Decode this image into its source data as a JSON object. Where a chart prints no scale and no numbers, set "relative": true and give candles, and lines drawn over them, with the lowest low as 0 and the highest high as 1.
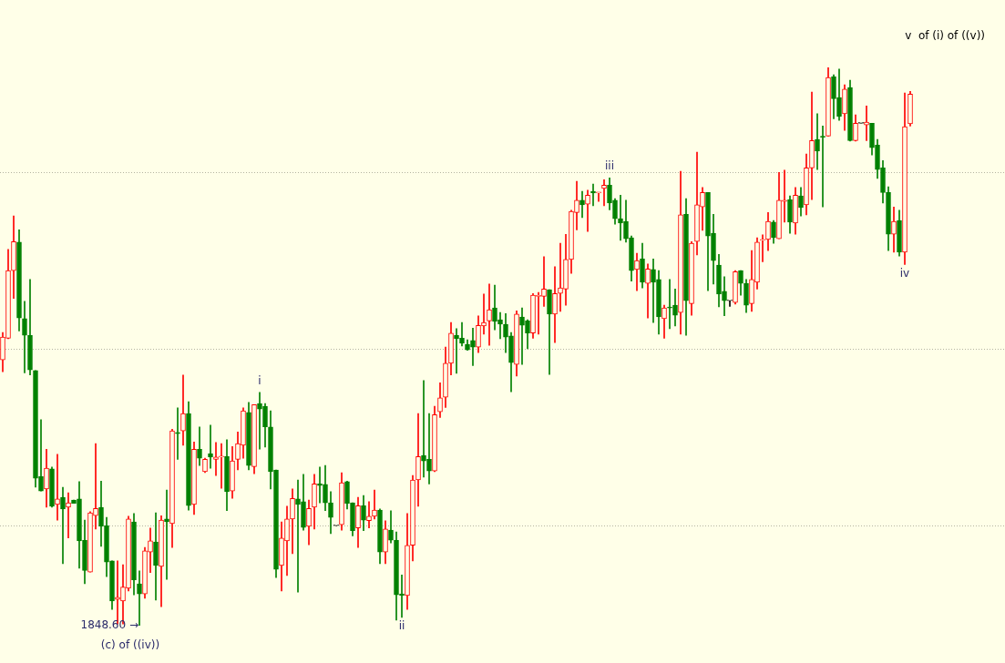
{
  "chart_data": {
    "type": "candlestick",
    "relative": true,
    "tick_labels": false,
    "categories": [
      null,
      null,
      null,
      null,
      null,
      null,
      null,
      null,
      null,
      null,
      null,
      null,
      null,
      null,
      null,
      null,
      null,
      null,
      null,
      null,
      null,
      null,
      null,
      null,
      null,
      null,
      null,
      null,
      null,
      null,
      null,
      null,
      null,
      null,
      null,
      null,
      null,
      null,
      null,
      null,
      null,
      null,
      null,
      null,
      null,
      null,
      null,
      null,
      null,
      null,
      null,
      null,
      null,
      null,
      null,
      null,
      null,
      null,
      null,
      null,
      null,
      null,
      null,
      null,
      null,
      null,
      null,
      null,
      null,
      null,
      null,
      null,
      null,
      null,
      null,
      null,
      null,
      null,
      null,
      null,
      null,
      null,
      null,
      null,
      null,
      null,
      null,
      null,
      null,
      null,
      null,
      null,
      null,
      null,
      null,
      null,
      null,
      null,
      null,
      null,
      null,
      null,
      null,
      null,
      null,
      null,
      null,
      null,
      null,
      null,
      null,
      null,
      null,
      null,
      null,
      null,
      null,
      null,
      null,
      null,
      null,
      null,
      null,
      null,
      null,
      null,
      null,
      null,
      null,
      null,
      null,
      null,
      null,
      null,
      null,
      null,
      null,
      null,
      null,
      null,
      null,
      null,
      null,
      null,
      null,
      null,
      null,
      null,
      null,
      null,
      null,
      null,
      null,
      null,
      null,
      null,
      null,
      null,
      null,
      null,
      null,
      null,
      null,
      null,
      null,
      null,
      null
    ],
    "ohlc": [
      [
        0.476,
        0.525,
        0.455,
        0.517
      ],
      [
        0.515,
        0.674,
        0.514,
        0.636
      ],
      [
        0.636,
        0.734,
        0.586,
        0.688
      ],
      [
        0.687,
        0.709,
        0.528,
        0.551
      ],
      [
        0.55,
        0.581,
        0.453,
        0.52
      ],
      [
        0.52,
        0.62,
        0.449,
        0.458
      ],
      [
        0.457,
        0.457,
        0.248,
        0.264
      ],
      [
        0.267,
        0.369,
        0.241,
        0.241
      ],
      [
        0.245,
        0.316,
        0.212,
        0.282
      ],
      [
        0.281,
        0.284,
        0.212,
        0.214
      ],
      [
        0.217,
        0.307,
        0.189,
        0.227
      ],
      [
        0.23,
        0.248,
        0.111,
        0.209
      ],
      [
        0.212,
        0.238,
        0.157,
        0.22
      ],
      [
        0.225,
        0.225,
        0.219,
        0.219
      ],
      [
        0.227,
        0.258,
        0.103,
        0.152
      ],
      [
        0.153,
        0.189,
        0.075,
        0.099
      ],
      [
        0.096,
        0.204,
        0.096,
        0.202
      ],
      [
        0.197,
        0.326,
        0.173,
        0.21
      ],
      [
        0.212,
        0.259,
        0.142,
        0.178
      ],
      [
        0.179,
        0.194,
        0.088,
        0.114
      ],
      [
        0.116,
        0.116,
        0.029,
        0.044
      ],
      [
        0.047,
        0.116,
        0.003,
        0.051
      ],
      [
        0.044,
        0.109,
        0.003,
        0.069
      ],
      [
        0.067,
        0.196,
        0.062,
        0.191
      ],
      [
        0.186,
        0.201,
        0.055,
        0.082
      ],
      [
        0.075,
        0.098,
        0,
        0.057
      ],
      [
        0.057,
        0.14,
        0.049,
        0.134
      ],
      [
        0.132,
        0.175,
        0.095,
        0.152
      ],
      [
        0.15,
        0.202,
        0.046,
        0.108
      ],
      [
        0.106,
        0.197,
        0.034,
        0.189
      ],
      [
        0.191,
        0.243,
        0.083,
        0.186
      ],
      [
        0.183,
        0.352,
        0.14,
        0.349
      ],
      [
        0.346,
        0.39,
        0.298,
        0.344
      ],
      [
        0.349,
        0.449,
        0.323,
        0.38
      ],
      [
        0.38,
        0.401,
        0.207,
        0.215
      ],
      [
        0.217,
        0.329,
        0.199,
        0.316
      ],
      [
        0.316,
        0.356,
        0.287,
        0.3
      ],
      [
        0.276,
        0.3,
        0.274,
        0.298
      ],
      [
        0.308,
        0.359,
        0.282,
        0.302
      ],
      [
        0.298,
        0.328,
        0.269,
        0.302
      ],
      [
        0.302,
        0.326,
        0.246,
        0.303
      ],
      [
        0.303,
        0.333,
        0.206,
        0.24
      ],
      [
        0.241,
        0.321,
        0.228,
        0.295
      ],
      [
        0.298,
        0.347,
        0.279,
        0.326
      ],
      [
        0.323,
        0.39,
        0.3,
        0.385
      ],
      [
        0.382,
        0.4,
        0.279,
        0.287
      ],
      [
        0.285,
        0.396,
        0.272,
        0.396
      ],
      [
        0.398,
        0.418,
        0.316,
        0.388
      ],
      [
        0.393,
        0.398,
        0.32,
        0.356
      ],
      [
        0.356,
        0.385,
        0.245,
        0.276
      ],
      [
        0.279,
        0.279,
        0.086,
        0.101
      ],
      [
        0.108,
        0.186,
        0.062,
        0.157
      ],
      [
        0.152,
        0.214,
        0.09,
        0.191
      ],
      [
        0.191,
        0.245,
        0.129,
        0.228
      ],
      [
        0.227,
        0.261,
        0.06,
        0.217
      ],
      [
        0.222,
        0.271,
        0.171,
        0.176
      ],
      [
        0.178,
        0.225,
        0.145,
        0.21
      ],
      [
        0.212,
        0.271,
        0.173,
        0.254
      ],
      [
        0.254,
        0.284,
        0.22,
        0.251
      ],
      [
        0.253,
        0.287,
        0.206,
        0.22
      ],
      [
        0.22,
        0.24,
        0.165,
        0.194
      ],
      [
        0.179,
        0.179,
        0.179,
        0.179
      ],
      [
        0.181,
        0.274,
        0.171,
        0.256
      ],
      [
        0.258,
        0.259,
        0.209,
        0.219
      ],
      [
        0.22,
        0.22,
        0.161,
        0.17
      ],
      [
        0.175,
        0.23,
        0.14,
        0.215
      ],
      [
        0.215,
        0.233,
        0.17,
        0.189
      ],
      [
        0.188,
        0.222,
        0.175,
        0.196
      ],
      [
        0.196,
        0.243,
        0.191,
        0.207
      ],
      [
        0.207,
        0.209,
        0.111,
        0.132
      ],
      [
        0.132,
        0.188,
        0.111,
        0.173
      ],
      [
        0.171,
        0.206,
        0.148,
        0.153
      ],
      [
        0.153,
        0.168,
        0.01,
        0.055
      ],
      [
        0.057,
        0.091,
        0.015,
        0.054
      ],
      [
        0.054,
        0.201,
        0.029,
        0.144
      ],
      [
        0.144,
        0.269,
        0.116,
        0.261
      ],
      [
        0.261,
        0.38,
        0.214,
        0.303
      ],
      [
        0.305,
        0.439,
        0.266,
        0.295
      ],
      [
        0.298,
        0.38,
        0.254,
        0.277
      ],
      [
        0.277,
        0.393,
        0.276,
        0.378
      ],
      [
        0.383,
        0.435,
        0.373,
        0.408
      ],
      [
        0.409,
        0.499,
        0.391,
        0.47
      ],
      [
        0.47,
        0.543,
        0.449,
        0.524
      ],
      [
        0.52,
        0.532,
        0.452,
        0.514
      ],
      [
        0.515,
        0.543,
        0.501,
        0.506
      ],
      [
        0.504,
        0.512,
        0.493,
        0.494
      ],
      [
        0.511,
        0.533,
        0.466,
        0.499
      ],
      [
        0.499,
        0.555,
        0.489,
        0.538
      ],
      [
        0.537,
        0.594,
        0.522,
        0.543
      ],
      [
        0.546,
        0.612,
        0.502,
        0.566
      ],
      [
        0.569,
        0.61,
        0.53,
        0.545
      ],
      [
        0.548,
        0.561,
        0.514,
        0.54
      ],
      [
        0.54,
        0.559,
        0.489,
        0.517
      ],
      [
        0.519,
        0.525,
        0.419,
        0.471
      ],
      [
        0.468,
        0.564,
        0.447,
        0.558
      ],
      [
        0.553,
        0.569,
        0.468,
        0.538
      ],
      [
        0.546,
        0.548,
        0.496,
        0.524
      ],
      [
        0.524,
        0.595,
        0.515,
        0.592
      ],
      [
        0.59,
        0.597,
        0.522,
        0.59
      ],
      [
        0.59,
        0.661,
        0.572,
        0.603
      ],
      [
        0.602,
        0.602,
        0.45,
        0.558
      ],
      [
        0.558,
        0.643,
        0.507,
        0.595
      ],
      [
        0.595,
        0.685,
        0.563,
        0.605
      ],
      [
        0.603,
        0.701,
        0.574,
        0.656
      ],
      [
        0.656,
        0.744,
        0.631,
        0.742
      ],
      [
        0.74,
        0.796,
        0.709,
        0.762
      ],
      [
        0.762,
        0.778,
        0.731,
        0.754
      ],
      [
        0.755,
        0.78,
        0.706,
        0.771
      ],
      [
        0.778,
        0.791,
        0.752,
        0.775
      ],
      [
        0.775,
        0.776,
        0.76,
        0.776
      ],
      [
        0.783,
        0.799,
        0.752,
        0.789
      ],
      [
        0.789,
        0.802,
        0.745,
        0.757
      ],
      [
        0.762,
        0.765,
        0.719,
        0.729
      ],
      [
        0.729,
        0.771,
        0.69,
        0.721
      ],
      [
        0.724,
        0.762,
        0.687,
        0.693
      ],
      [
        0.695,
        0.698,
        0.617,
        0.636
      ],
      [
        0.638,
        0.667,
        0.6,
        0.654
      ],
      [
        0.657,
        0.685,
        0.605,
        0.615
      ],
      [
        0.613,
        0.648,
        0.551,
        0.639
      ],
      [
        0.638,
        0.657,
        0.543,
        0.615
      ],
      [
        0.62,
        0.636,
        0.522,
        0.553
      ],
      [
        0.55,
        0.574,
        0.515,
        0.569
      ],
      [
        0.571,
        0.62,
        0.532,
        0.569
      ],
      [
        0.574,
        0.603,
        0.537,
        0.556
      ],
      [
        0.561,
        0.814,
        0.522,
        0.736
      ],
      [
        0.737,
        0.765,
        0.52,
        0.582
      ],
      [
        0.577,
        0.688,
        0.556,
        0.685
      ],
      [
        0.688,
        0.848,
        0.664,
        0.754
      ],
      [
        0.75,
        0.785,
        0.708,
        0.776
      ],
      [
        0.776,
        0.776,
        0.6,
        0.698
      ],
      [
        0.703,
        0.737,
        0.612,
        0.654
      ],
      [
        0.646,
        0.665,
        0.571,
        0.594
      ],
      [
        0.599,
        0.625,
        0.555,
        0.582
      ],
      [
        0.582,
        0.582,
        0.572,
        0.582
      ],
      [
        0.579,
        0.636,
        0.576,
        0.634
      ],
      [
        0.636,
        0.636,
        0.592,
        0.613
      ],
      [
        0.613,
        0.62,
        0.561,
        0.574
      ],
      [
        0.577,
        0.672,
        0.563,
        0.62
      ],
      [
        0.615,
        0.695,
        0.603,
        0.687
      ],
      [
        0.69,
        0.7,
        0.652,
        0.692
      ],
      [
        0.692,
        0.74,
        0.672,
        0.724
      ],
      [
        0.723,
        0.726,
        0.685,
        0.695
      ],
      [
        0.693,
        0.812,
        0.693,
        0.762
      ],
      [
        0.76,
        0.816,
        0.723,
        0.762
      ],
      [
        0.763,
        0.77,
        0.703,
        0.723
      ],
      [
        0.721,
        0.785,
        0.701,
        0.771
      ],
      [
        0.77,
        0.785,
        0.734,
        0.749
      ],
      [
        0.754,
        0.845,
        0.736,
        0.82
      ],
      [
        0.82,
        0.956,
        0.763,
        0.869
      ],
      [
        0.871,
        0.917,
        0.817,
        0.85
      ],
      [
        0.876,
        0.895,
        0.75,
        0.875
      ],
      [
        0.877,
        1,
        0.877,
        0.982
      ],
      [
        0.983,
        0.987,
        0.908,
        0.944
      ],
      [
        0.946,
        0.997,
        0.905,
        0.912
      ],
      [
        0.917,
        0.969,
        0.887,
        0.961
      ],
      [
        0.964,
        0.977,
        0.868,
        0.869
      ],
      [
        0.869,
        0.915,
        0.868,
        0.9
      ],
      [
        0.9,
        0.9,
        0.9,
        0.9
      ],
      [
        0.897,
        0.931,
        0.869,
        0.902
      ],
      [
        0.9,
        0.9,
        0.843,
        0.856
      ],
      [
        0.861,
        0.871,
        0.801,
        0.817
      ],
      [
        0.82,
        0.833,
        0.757,
        0.776
      ],
      [
        0.776,
        0.786,
        0.672,
        0.701
      ],
      [
        0.701,
        0.75,
        0.669,
        0.724
      ],
      [
        0.726,
        0.744,
        0.662,
        0.669
      ],
      [
        0.669,
        0.954,
        0.647,
        0.894
      ],
      [
        0.899,
        0.957,
        0.895,
        0.952
      ]
    ],
    "colors": [
      "#ff0000",
      "#ff0000",
      "#ff0000",
      "#008000",
      "#008000",
      "#008000",
      "#008000",
      "#008000",
      "#ff0000",
      "#008000",
      "#ff0000",
      "#008000",
      "#ff0000",
      "#008000",
      "#008000",
      "#008000",
      "#ff0000",
      "#ff0000",
      "#008000",
      "#008000",
      "#008000",
      "#ff0000",
      "#ff0000",
      "#ff0000",
      "#008000",
      "#008000",
      "#ff0000",
      "#ff0000",
      "#008000",
      "#ff0000",
      "#008000",
      "#ff0000",
      "#008000",
      "#ff0000",
      "#008000",
      "#ff0000",
      "#008000",
      "#ff0000",
      "#008000",
      "#ff0000",
      "#ff0000",
      "#008000",
      "#ff0000",
      "#ff0000",
      "#ff0000",
      "#008000",
      "#ff0000",
      "#008000",
      "#008000",
      "#008000",
      "#008000",
      "#ff0000",
      "#ff0000",
      "#ff0000",
      "#008000",
      "#008000",
      "#ff0000",
      "#ff0000",
      "#008000",
      "#008000",
      "#008000",
      "#000000",
      "#ff0000",
      "#008000",
      "#008000",
      "#ff0000",
      "#008000",
      "#ff0000",
      "#ff0000",
      "#008000",
      "#ff0000",
      "#008000",
      "#008000",
      "#008000",
      "#ff0000",
      "#ff0000",
      "#ff0000",
      "#008000",
      "#008000",
      "#ff0000",
      "#ff0000",
      "#ff0000",
      "#ff0000",
      "#008000",
      "#008000",
      "#008000",
      "#008000",
      "#ff0000",
      "#ff0000",
      "#ff0000",
      "#008000",
      "#008000",
      "#008000",
      "#008000",
      "#ff0000",
      "#008000",
      "#008000",
      "#ff0000",
      "#ff0000",
      "#ff0000",
      "#008000",
      "#ff0000",
      "#ff0000",
      "#ff0000",
      "#ff0000",
      "#ff0000",
      "#008000",
      "#ff0000",
      "#008000",
      "#ff0000",
      "#ff0000",
      "#008000",
      "#008000",
      "#008000",
      "#008000",
      "#008000",
      "#ff0000",
      "#008000",
      "#ff0000",
      "#008000",
      "#008000",
      "#ff0000",
      "#008000",
      "#008000",
      "#ff0000",
      "#008000",
      "#ff0000",
      "#ff0000",
      "#ff0000",
      "#008000",
      "#008000",
      "#008000",
      "#008000",
      "#000000",
      "#ff0000",
      "#008000",
      "#008000",
      "#ff0000",
      "#ff0000",
      "#ff0000",
      "#ff0000",
      "#008000",
      "#ff0000",
      "#ff0000",
      "#008000",
      "#ff0000",
      "#008000",
      "#ff0000",
      "#ff0000",
      "#008000",
      "#008000",
      "#ff0000",
      "#008000",
      "#008000",
      "#ff0000",
      "#008000",
      "#ff0000",
      "#000000",
      "#ff0000",
      "#008000",
      "#008000",
      "#008000",
      "#008000",
      "#ff0000",
      "#008000",
      "#ff0000",
      "#ff0000"
    ],
    "ref_lines": [
      {
        "axis": "y",
        "value": 0.812,
        "color": "#b4b4a0",
        "line_style": "dotted"
      },
      {
        "axis": "y",
        "value": 0.496,
        "color": "#b4b4a0",
        "line_style": "dotted"
      },
      {
        "axis": "y",
        "value": 0.179,
        "color": "#b4b4a0",
        "line_style": "dotted"
      }
    ],
    "annotations": [
      {
        "text": "i",
        "y": 0.418
      },
      {
        "text": "ii",
        "y": 0.015
      },
      {
        "text": "iii",
        "y": 0.802
      },
      {
        "text": "iv",
        "y": 0.647
      },
      "1848.60 →",
      "(c) of ((iv))",
      "v  of (i) of ((v))"
    ]
  }
}
